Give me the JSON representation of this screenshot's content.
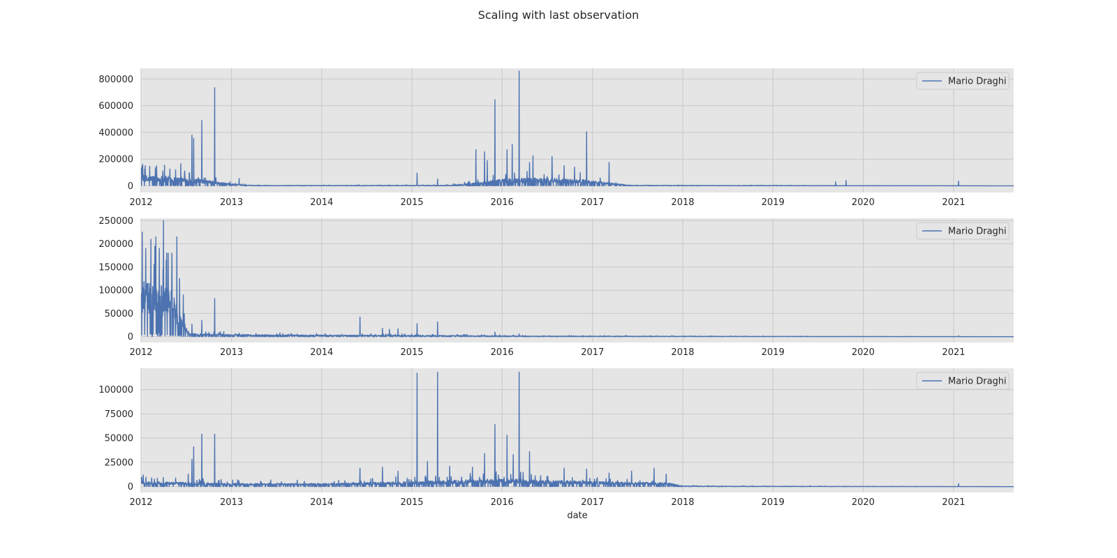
{
  "figure": {
    "title": "Scaling with last observation"
  },
  "chart_data": [
    {
      "type": "line",
      "title": "",
      "xlabel": "",
      "ylabel": "",
      "x_ticks": [
        "2012",
        "2013",
        "2014",
        "2015",
        "2016",
        "2017",
        "2018",
        "2019",
        "2020",
        "2021"
      ],
      "xlim": [
        "2012-01-01",
        "2021-09-01"
      ],
      "ylim": [
        -50000,
        880000
      ],
      "y_ticks": [
        0,
        200000,
        400000,
        600000,
        800000
      ],
      "y_tick_labels": [
        "0",
        "200000",
        "400000",
        "600000",
        "800000"
      ],
      "grid": true,
      "legend_position": "top-right",
      "color": "#4c72b0",
      "series": [
        {
          "name": "Mario Draghi"
        }
      ],
      "baseline": [
        [
          "2012-01-01",
          60000
        ],
        [
          "2012-04-01",
          55000
        ],
        [
          "2012-07-01",
          45000
        ],
        [
          "2012-10-01",
          30000
        ],
        [
          "2013-01-01",
          12000
        ],
        [
          "2013-04-01",
          2000
        ],
        [
          "2015-06-01",
          3000
        ],
        [
          "2015-09-01",
          15000
        ],
        [
          "2016-01-01",
          40000
        ],
        [
          "2016-06-01",
          45000
        ],
        [
          "2016-12-01",
          35000
        ],
        [
          "2017-03-01",
          20000
        ],
        [
          "2017-06-01",
          3000
        ],
        [
          "2021-09-01",
          0
        ]
      ],
      "spikes": [
        [
          "2012-01-08",
          160000
        ],
        [
          "2012-02-05",
          145000
        ],
        [
          "2012-03-04",
          150000
        ],
        [
          "2012-04-05",
          155000
        ],
        [
          "2012-05-20",
          120000
        ],
        [
          "2012-06-10",
          165000
        ],
        [
          "2012-07-25",
          380000
        ],
        [
          "2012-08-01",
          355000
        ],
        [
          "2012-09-03",
          490000
        ],
        [
          "2012-10-25",
          735000
        ],
        [
          "2013-02-01",
          55000
        ],
        [
          "2015-01-22",
          95000
        ],
        [
          "2015-04-15",
          50000
        ],
        [
          "2015-09-17",
          270000
        ],
        [
          "2015-10-22",
          255000
        ],
        [
          "2015-11-02",
          190000
        ],
        [
          "2015-12-03",
          645000
        ],
        [
          "2016-01-21",
          270000
        ],
        [
          "2016-02-11",
          310000
        ],
        [
          "2016-03-10",
          860000
        ],
        [
          "2016-04-21",
          175000
        ],
        [
          "2016-05-05",
          225000
        ],
        [
          "2016-07-21",
          220000
        ],
        [
          "2016-09-08",
          150000
        ],
        [
          "2016-10-20",
          140000
        ],
        [
          "2016-12-08",
          405000
        ],
        [
          "2017-03-09",
          175000
        ],
        [
          "2019-09-12",
          30000
        ],
        [
          "2019-10-24",
          40000
        ],
        [
          "2021-01-21",
          35000
        ]
      ]
    },
    {
      "type": "line",
      "title": "",
      "xlabel": "",
      "ylabel": "",
      "x_ticks": [
        "2012",
        "2013",
        "2014",
        "2015",
        "2016",
        "2017",
        "2018",
        "2019",
        "2020",
        "2021"
      ],
      "xlim": [
        "2012-01-01",
        "2021-09-01"
      ],
      "ylim": [
        -12500,
        255000
      ],
      "y_ticks": [
        0,
        50000,
        100000,
        150000,
        200000,
        250000
      ],
      "y_tick_labels": [
        "0",
        "50000",
        "100000",
        "150000",
        "200000",
        "250000"
      ],
      "grid": true,
      "legend_position": "top-right",
      "color": "#4c72b0",
      "series": [
        {
          "name": "Mario Draghi"
        }
      ],
      "baseline": [
        [
          "2012-01-01",
          90000
        ],
        [
          "2012-03-01",
          85000
        ],
        [
          "2012-05-01",
          75000
        ],
        [
          "2012-06-15",
          30000
        ],
        [
          "2012-07-15",
          5000
        ],
        [
          "2013-06-01",
          3000
        ],
        [
          "2015-06-01",
          2000
        ],
        [
          "2016-06-01",
          1000
        ],
        [
          "2021-09-01",
          0
        ]
      ],
      "spikes": [
        [
          "2012-01-06",
          225000
        ],
        [
          "2012-01-20",
          190000
        ],
        [
          "2012-02-10",
          210000
        ],
        [
          "2012-03-01",
          215000
        ],
        [
          "2012-03-15",
          190000
        ],
        [
          "2012-04-01",
          250000
        ],
        [
          "2012-04-20",
          180000
        ],
        [
          "2012-05-05",
          180000
        ],
        [
          "2012-05-25",
          215000
        ],
        [
          "2012-06-05",
          125000
        ],
        [
          "2012-06-20",
          90000
        ],
        [
          "2012-07-25",
          27000
        ],
        [
          "2012-09-03",
          35000
        ],
        [
          "2012-10-25",
          82000
        ],
        [
          "2014-06-05",
          42000
        ],
        [
          "2014-09-04",
          18000
        ],
        [
          "2014-10-02",
          16000
        ],
        [
          "2014-11-06",
          17000
        ],
        [
          "2015-01-22",
          28000
        ],
        [
          "2015-04-15",
          32000
        ],
        [
          "2015-12-03",
          10000
        ],
        [
          "2016-03-10",
          6000
        ],
        [
          "2021-01-21",
          2000
        ]
      ]
    },
    {
      "type": "line",
      "title": "",
      "xlabel": "date",
      "ylabel": "",
      "x_ticks": [
        "2012",
        "2013",
        "2014",
        "2015",
        "2016",
        "2017",
        "2018",
        "2019",
        "2020",
        "2021"
      ],
      "xlim": [
        "2012-01-01",
        "2021-09-01"
      ],
      "ylim": [
        -6000,
        122000
      ],
      "y_ticks": [
        0,
        25000,
        50000,
        75000,
        100000
      ],
      "y_tick_labels": [
        "0",
        "25000",
        "50000",
        "75000",
        "100000"
      ],
      "grid": true,
      "legend_position": "top-right",
      "color": "#4c72b0",
      "series": [
        {
          "name": "Mario Draghi"
        }
      ],
      "baseline": [
        [
          "2012-01-01",
          4000
        ],
        [
          "2013-01-01",
          2500
        ],
        [
          "2014-01-01",
          2500
        ],
        [
          "2015-01-01",
          4000
        ],
        [
          "2016-01-01",
          6000
        ],
        [
          "2017-01-01",
          4000
        ],
        [
          "2017-11-01",
          3000
        ],
        [
          "2018-01-01",
          500
        ],
        [
          "2018-09-01",
          300
        ],
        [
          "2021-09-01",
          0
        ]
      ],
      "spikes": [
        [
          "2012-01-10",
          12000
        ],
        [
          "2012-07-10",
          13000
        ],
        [
          "2012-07-25",
          28000
        ],
        [
          "2012-08-01",
          41000
        ],
        [
          "2012-09-03",
          54000
        ],
        [
          "2012-10-25",
          54000
        ],
        [
          "2014-06-05",
          19000
        ],
        [
          "2014-09-04",
          20000
        ],
        [
          "2014-11-06",
          16000
        ],
        [
          "2015-01-22",
          117000
        ],
        [
          "2015-04-15",
          118000
        ],
        [
          "2015-03-05",
          26000
        ],
        [
          "2015-06-03",
          21000
        ],
        [
          "2015-09-03",
          20000
        ],
        [
          "2015-10-22",
          34000
        ],
        [
          "2015-12-03",
          64000
        ],
        [
          "2016-01-21",
          53000
        ],
        [
          "2016-02-15",
          33000
        ],
        [
          "2016-03-10",
          118000
        ],
        [
          "2016-04-21",
          36000
        ],
        [
          "2016-09-08",
          19000
        ],
        [
          "2016-12-08",
          18000
        ],
        [
          "2017-03-09",
          14000
        ],
        [
          "2017-06-08",
          16000
        ],
        [
          "2017-09-07",
          19000
        ],
        [
          "2017-10-26",
          13000
        ],
        [
          "2021-01-21",
          3000
        ]
      ]
    }
  ]
}
